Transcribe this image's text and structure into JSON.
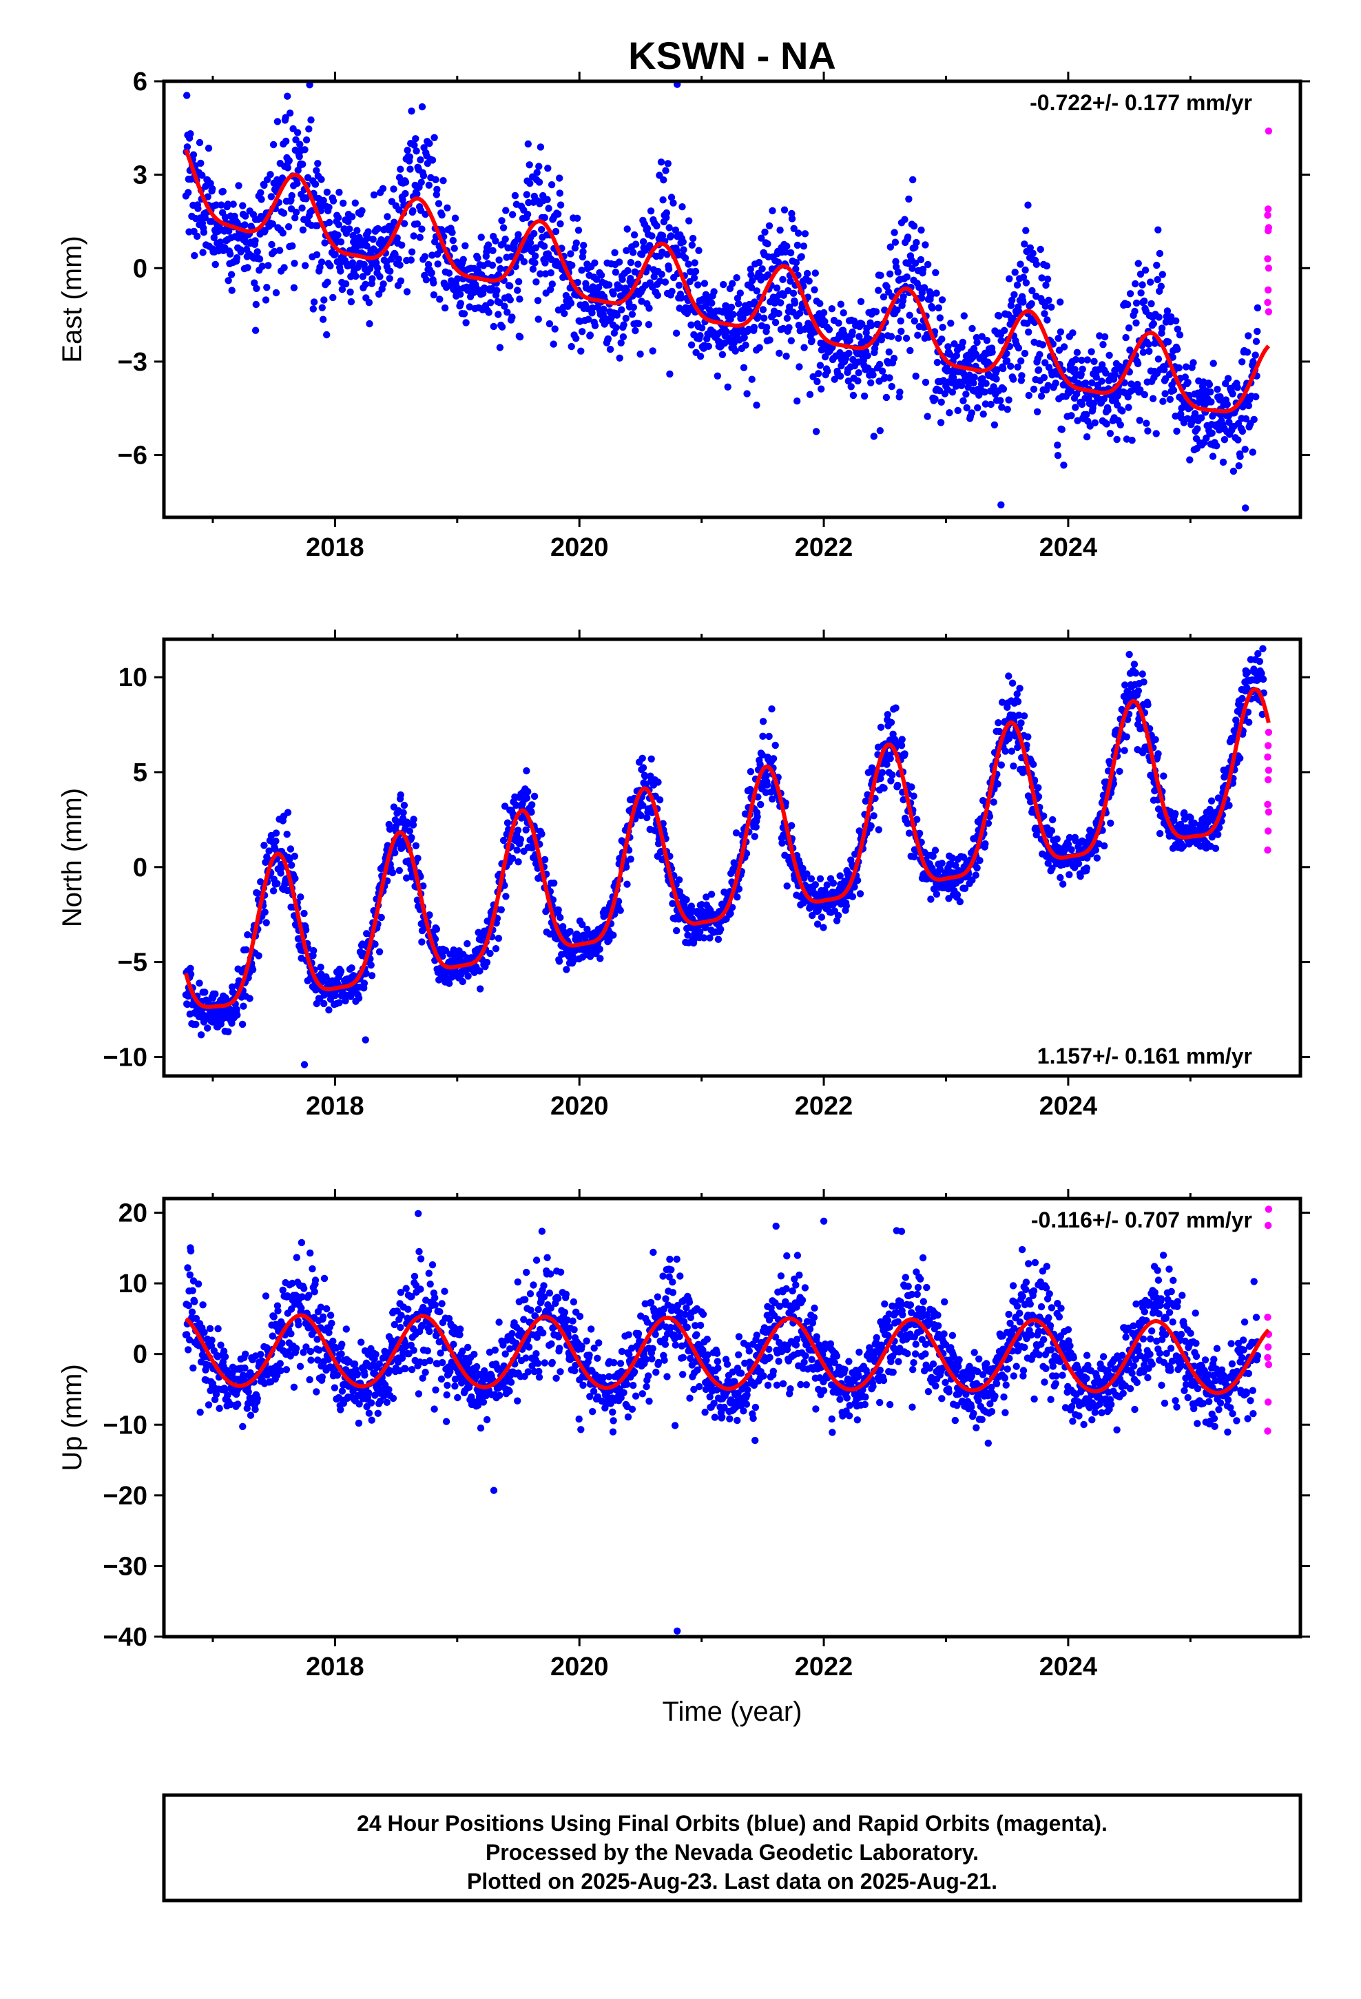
{
  "title": "KSWN - NA",
  "footer": {
    "line1": "24 Hour Positions Using Final Orbits (blue) and Rapid Orbits (magenta).",
    "line2": "Processed by the Nevada Geodetic Laboratory.",
    "line3": "Plotted on 2025-Aug-23. Last data on 2025-Aug-21."
  },
  "colors": {
    "final": "#0000ff",
    "rapid": "#ff00ff",
    "fit": "#ff0000"
  },
  "chart_data": [
    {
      "type": "scatter",
      "ylabel": "East (mm)",
      "xlabel": "",
      "rate": "-0.722+/- 0.177 mm/yr",
      "rate_position": "top-right",
      "xlim": [
        2016.6,
        2025.9
      ],
      "ylim": [
        -8,
        6
      ],
      "yticks": [
        -6,
        -3,
        0,
        3,
        6
      ],
      "xticks": [
        2018,
        2020,
        2022,
        2024
      ],
      "xtick_labels": [
        "2018",
        "2020",
        "2022",
        "2024"
      ],
      "data_start": 2016.78,
      "final_end": 2025.55,
      "data_end": 2025.64,
      "fit": {
        "intercept": 2.2,
        "slope": -0.722,
        "annual_amp": 1.1,
        "annual_peak": 0.68,
        "semiannual_amp": 0.3
      },
      "noise_sd": 1.2,
      "fit_start_value": 3.8,
      "fit_end_value": -2.5,
      "rapid_values": [
        4.4,
        1.9,
        1.7,
        1.3,
        1.2,
        0.3,
        0.0,
        -0.7,
        -1.1,
        -1.4
      ],
      "outliers": [
        {
          "x": 2020.8,
          "y": 5.9
        },
        {
          "x": 2021.45,
          "y": -4.4
        },
        {
          "x": 2023.45,
          "y": -7.6
        },
        {
          "x": 2017.35,
          "y": -2.0
        },
        {
          "x": 2025.45,
          "y": -7.7
        }
      ]
    },
    {
      "type": "scatter",
      "ylabel": "North (mm)",
      "xlabel": "",
      "rate": "1.157+/- 0.161 mm/yr",
      "rate_position": "bottom-right",
      "xlim": [
        2016.6,
        2025.9
      ],
      "ylim": [
        -11,
        12
      ],
      "yticks": [
        -10,
        -5,
        0,
        5,
        10
      ],
      "xticks": [
        2018,
        2020,
        2022,
        2024
      ],
      "xtick_labels": [
        "2018",
        "2020",
        "2022",
        "2024"
      ],
      "data_start": 2016.78,
      "final_end": 2025.6,
      "data_end": 2025.64,
      "fit": {
        "intercept": -5.0,
        "slope": 1.157,
        "annual_amp": 3.8,
        "annual_peak": 0.53,
        "semiannual_amp": 1.0
      },
      "noise_sd": 0.9,
      "fit_start_value": -5.6,
      "fit_end_value": 7.6,
      "rapid_values": [
        7.1,
        6.4,
        5.8,
        5.1,
        4.6,
        3.3,
        2.9,
        1.9,
        0.9
      ],
      "outliers": [
        {
          "x": 2017.75,
          "y": -10.4
        },
        {
          "x": 2024.5,
          "y": 11.2
        },
        {
          "x": 2018.25,
          "y": -9.1
        }
      ]
    },
    {
      "type": "scatter",
      "ylabel": "Up (mm)",
      "xlabel": "Time (year)",
      "rate": "-0.116+/- 0.707 mm/yr",
      "rate_position": "top-right",
      "xlim": [
        2016.6,
        2025.9
      ],
      "ylim": [
        -40,
        22
      ],
      "yticks": [
        -40,
        -30,
        -20,
        -10,
        0,
        10,
        20
      ],
      "xticks": [
        2018,
        2020,
        2022,
        2024
      ],
      "xtick_labels": [
        "2018",
        "2020",
        "2022",
        "2024"
      ],
      "data_start": 2016.78,
      "final_end": 2025.55,
      "data_end": 2025.64,
      "fit": {
        "intercept": 0.3,
        "slope": -0.116,
        "annual_amp": 5.0,
        "annual_peak": 0.72,
        "semiannual_amp": 0.3
      },
      "noise_sd": 4.0,
      "fit_start_value": 5.0,
      "fit_end_value": 3.4,
      "rapid_values": [
        20.5,
        18.2,
        5.2,
        2.8,
        1.0,
        -0.5,
        -1.5,
        -6.8,
        -10.9
      ],
      "outliers": [
        {
          "x": 2020.8,
          "y": -39.2
        },
        {
          "x": 2022.0,
          "y": 18.8
        },
        {
          "x": 2019.3,
          "y": -19.3
        }
      ]
    }
  ]
}
